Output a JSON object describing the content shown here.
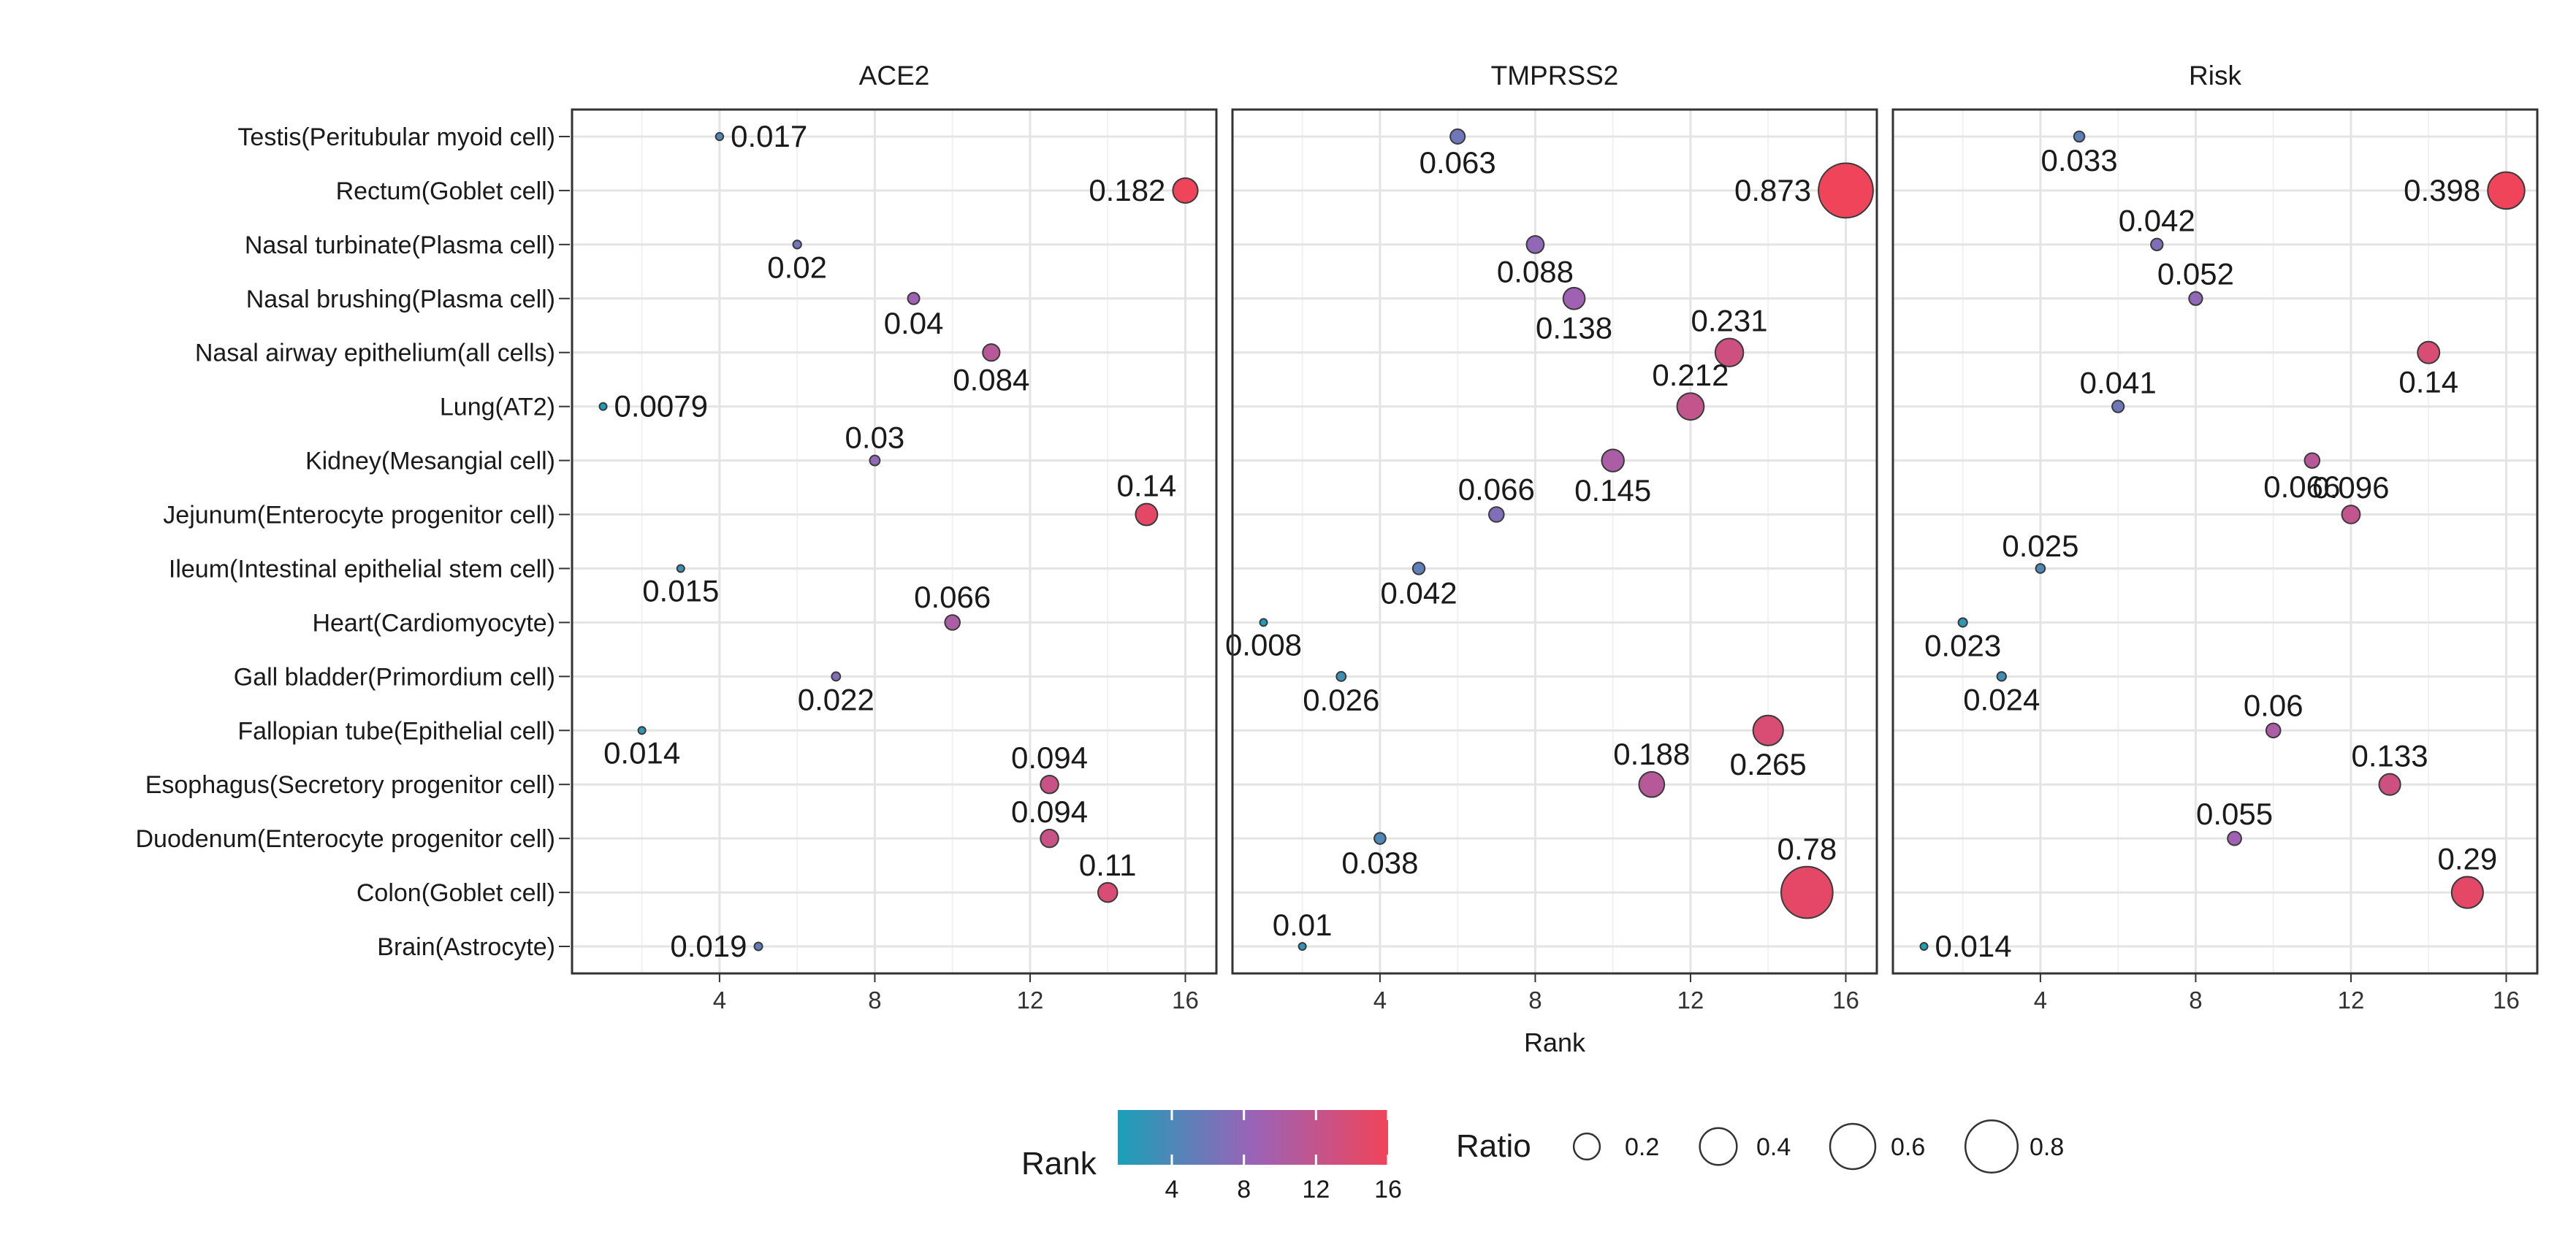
{
  "chart_data": {
    "type": "scatter",
    "xlabel": "Rank",
    "x_ticks": [
      4,
      8,
      12,
      16
    ],
    "xlim": [
      0.2,
      16.8
    ],
    "categories": [
      "Testis(Peritubular myoid cell)",
      "Rectum(Goblet cell)",
      "Nasal turbinate(Plasma cell)",
      "Nasal brushing(Plasma cell)",
      "Nasal airway epithelium(all cells)",
      "Lung(AT2)",
      "Kidney(Mesangial cell)",
      "Jejunum(Enterocyte progenitor cell)",
      "Ileum(Intestinal epithelial stem cell)",
      "Heart(Cardiomyocyte)",
      "Gall bladder(Primordium cell)",
      "Fallopian tube(Epithelial cell)",
      "Esophagus(Secretory progenitor cell)",
      "Duodenum(Enterocyte progenitor cell)",
      "Colon(Goblet cell)",
      "Brain(Astrocyte)"
    ],
    "panels": [
      {
        "name": "ACE2",
        "points": [
          {
            "rank": 4,
            "ratio": 0.017,
            "label": "0.017"
          },
          {
            "rank": 16,
            "ratio": 0.182,
            "label": "0.182"
          },
          {
            "rank": 6,
            "ratio": 0.02,
            "label": "0.02"
          },
          {
            "rank": 9,
            "ratio": 0.04,
            "label": "0.04"
          },
          {
            "rank": 11,
            "ratio": 0.084,
            "label": "0.084"
          },
          {
            "rank": 1,
            "ratio": 0.0079,
            "label": "0.0079"
          },
          {
            "rank": 8,
            "ratio": 0.03,
            "label": "0.03"
          },
          {
            "rank": 15,
            "ratio": 0.14,
            "label": "0.14"
          },
          {
            "rank": 3,
            "ratio": 0.015,
            "label": "0.015"
          },
          {
            "rank": 10,
            "ratio": 0.066,
            "label": "0.066"
          },
          {
            "rank": 7,
            "ratio": 0.022,
            "label": "0.022"
          },
          {
            "rank": 2,
            "ratio": 0.014,
            "label": "0.014"
          },
          {
            "rank": 12.5,
            "ratio": 0.094,
            "label": "0.094"
          },
          {
            "rank": 12.5,
            "ratio": 0.094,
            "label": "0.094"
          },
          {
            "rank": 14,
            "ratio": 0.11,
            "label": "0.11"
          },
          {
            "rank": 5,
            "ratio": 0.019,
            "label": "0.019"
          }
        ]
      },
      {
        "name": "TMPRSS2",
        "points": [
          {
            "rank": 6,
            "ratio": 0.063,
            "label": "0.063"
          },
          {
            "rank": 16,
            "ratio": 0.873,
            "label": "0.873"
          },
          {
            "rank": 8,
            "ratio": 0.088,
            "label": "0.088"
          },
          {
            "rank": 9,
            "ratio": 0.138,
            "label": "0.138"
          },
          {
            "rank": 13,
            "ratio": 0.231,
            "label": "0.231"
          },
          {
            "rank": 12,
            "ratio": 0.212,
            "label": "0.212"
          },
          {
            "rank": 10,
            "ratio": 0.145,
            "label": "0.145"
          },
          {
            "rank": 7,
            "ratio": 0.066,
            "label": "0.066"
          },
          {
            "rank": 5,
            "ratio": 0.042,
            "label": "0.042"
          },
          {
            "rank": 1,
            "ratio": 0.008,
            "label": "0.008"
          },
          {
            "rank": 3,
            "ratio": 0.026,
            "label": "0.026"
          },
          {
            "rank": 14,
            "ratio": 0.265,
            "label": "0.265"
          },
          {
            "rank": 11,
            "ratio": 0.188,
            "label": "0.188"
          },
          {
            "rank": 4,
            "ratio": 0.038,
            "label": "0.038"
          },
          {
            "rank": 15,
            "ratio": 0.78,
            "label": "0.78"
          },
          {
            "rank": 2,
            "ratio": 0.01,
            "label": "0.01"
          }
        ]
      },
      {
        "name": "Risk",
        "points": [
          {
            "rank": 5,
            "ratio": 0.033,
            "label": "0.033"
          },
          {
            "rank": 16,
            "ratio": 0.398,
            "label": "0.398"
          },
          {
            "rank": 7,
            "ratio": 0.042,
            "label": "0.042"
          },
          {
            "rank": 8,
            "ratio": 0.052,
            "label": "0.052"
          },
          {
            "rank": 14,
            "ratio": 0.14,
            "label": "0.14"
          },
          {
            "rank": 6,
            "ratio": 0.041,
            "label": "0.041"
          },
          {
            "rank": 11,
            "ratio": 0.066,
            "label": "0.066"
          },
          {
            "rank": 12,
            "ratio": 0.096,
            "label": "0.096"
          },
          {
            "rank": 4,
            "ratio": 0.025,
            "label": "0.025"
          },
          {
            "rank": 2,
            "ratio": 0.023,
            "label": "0.023"
          },
          {
            "rank": 3,
            "ratio": 0.024,
            "label": "0.024"
          },
          {
            "rank": 10,
            "ratio": 0.06,
            "label": "0.06"
          },
          {
            "rank": 13,
            "ratio": 0.133,
            "label": "0.133"
          },
          {
            "rank": 9,
            "ratio": 0.055,
            "label": "0.055"
          },
          {
            "rank": 15,
            "ratio": 0.29,
            "label": "0.29"
          },
          {
            "rank": 1,
            "ratio": 0.014,
            "label": "0.014"
          }
        ]
      }
    ],
    "color_scale": {
      "title": "Rank",
      "low": "#1aa0b8",
      "mid": "#9a63b8",
      "high": "#f0445a",
      "domain": [
        1,
        16
      ],
      "ticks": [
        4,
        8,
        12,
        16
      ]
    },
    "size_scale": {
      "title": "Ratio",
      "breaks": [
        0.2,
        0.4,
        0.6,
        0.8
      ],
      "labels": [
        "0.2",
        "0.4",
        "0.6",
        "0.8"
      ]
    },
    "grid": true
  }
}
